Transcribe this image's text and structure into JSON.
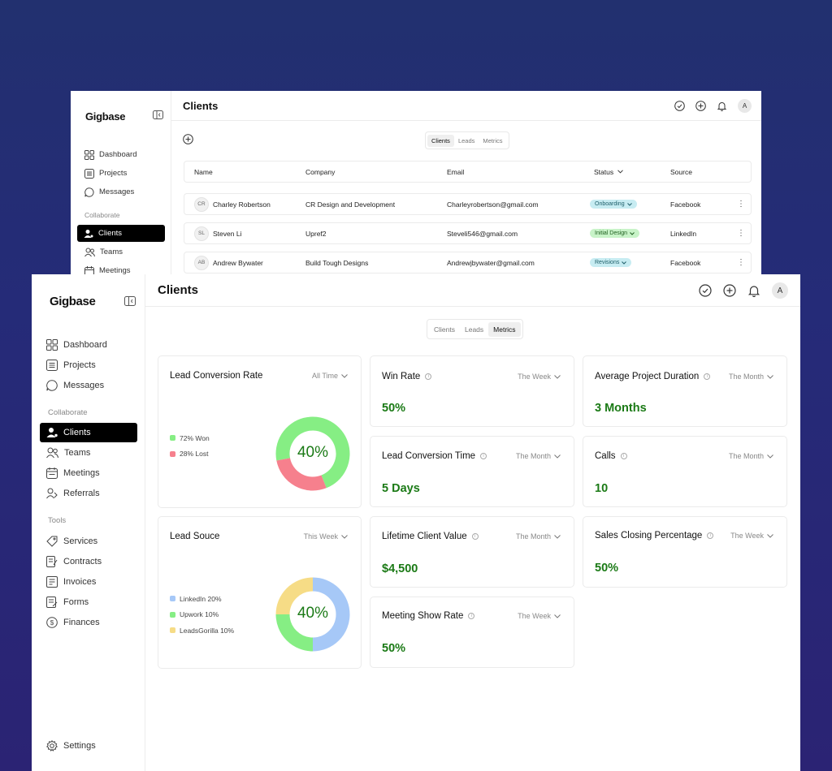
{
  "colors": {
    "green": "#1b7a16",
    "donut_green": "#86ee84",
    "donut_red": "#f6808d",
    "donut_blue": "#a6c8f7",
    "donut_yellow": "#f6dc86",
    "pill_cyan": "#c7ecf2",
    "pill_green": "#c8f3c8"
  },
  "back": {
    "logo": "Gigbase",
    "title": "Clients",
    "avatar": "A",
    "nav": [
      {
        "label": "Dashboard",
        "icon": "grid-icon"
      },
      {
        "label": "Projects",
        "icon": "list-icon"
      },
      {
        "label": "Messages",
        "icon": "chat-icon"
      }
    ],
    "section": "Collaborate",
    "nav2": [
      {
        "label": "Clients",
        "icon": "person-icon"
      },
      {
        "label": "Teams",
        "icon": "people-icon"
      },
      {
        "label": "Meetings",
        "icon": "calendar-icon"
      }
    ],
    "tabs": [
      "Clients",
      "Leads",
      "Metrics"
    ],
    "columns": [
      "Name",
      "Company",
      "Email",
      "Status",
      "Source"
    ],
    "rows": [
      {
        "initials": "CR",
        "name": "Charley Robertson",
        "company": "CR Design and Development",
        "email": "Charleyrobertson@gmail.com",
        "status": "Onboarding",
        "source": "Facebook"
      },
      {
        "initials": "SL",
        "name": "Steven Li",
        "company": "Upref2",
        "email": "Steveli546@gmail.com",
        "status": "Initial Design",
        "source": "LinkedIn"
      },
      {
        "initials": "AB",
        "name": "Andrew Bywater",
        "company": "Build Tough Designs",
        "email": "Andrewjbywater@gmail.com",
        "status": "Revisions",
        "source": "Facebook"
      }
    ]
  },
  "front": {
    "logo": "Gigbase",
    "title": "Clients",
    "avatar": "A",
    "nav": [
      {
        "label": "Dashboard",
        "icon": "grid-icon"
      },
      {
        "label": "Projects",
        "icon": "list-icon"
      },
      {
        "label": "Messages",
        "icon": "chat-icon"
      }
    ],
    "section1": "Collaborate",
    "nav2": [
      {
        "label": "Clients",
        "icon": "person-icon"
      },
      {
        "label": "Teams",
        "icon": "people-icon"
      },
      {
        "label": "Meetings",
        "icon": "calendar-icon"
      },
      {
        "label": "Referrals",
        "icon": "referral-icon"
      }
    ],
    "section2": "Tools",
    "nav3": [
      {
        "label": "Services",
        "icon": "tag-icon"
      },
      {
        "label": "Contracts",
        "icon": "contract-icon"
      },
      {
        "label": "Invoices",
        "icon": "invoice-icon"
      },
      {
        "label": "Forms",
        "icon": "form-icon"
      },
      {
        "label": "Finances",
        "icon": "dollar-icon"
      }
    ],
    "settings": "Settings",
    "tabs": [
      "Clients",
      "Leads",
      "Metrics"
    ],
    "lead_conversion": {
      "title": "Lead Conversion Rate",
      "period": "All Time",
      "center": "40%",
      "legend": [
        {
          "label": "72% Won",
          "value": 72,
          "color": "#86ee84"
        },
        {
          "label": "28% Lost",
          "value": 28,
          "color": "#f6808d"
        }
      ]
    },
    "lead_source": {
      "title": "Lead Souce",
      "period": "This Week",
      "center": "40%",
      "legend": [
        {
          "label": "LinkedIn 20%",
          "value": 50,
          "color": "#a6c8f7"
        },
        {
          "label": "Upwork 10%",
          "value": 25,
          "color": "#86ee84"
        },
        {
          "label": "LeadsGorilla 10%",
          "value": 25,
          "color": "#f6dc86"
        }
      ]
    },
    "metrics": [
      {
        "title": "Win Rate",
        "period": "The Week",
        "value": "50%"
      },
      {
        "title": "Average Project Duration",
        "period": "The Month",
        "value": "3 Months"
      },
      {
        "title": "Lead Conversion Time",
        "period": "The Month",
        "value": "5 Days"
      },
      {
        "title": "Calls",
        "period": "The Month",
        "value": "10"
      },
      {
        "title": "Lifetime Client Value",
        "period": "The Month",
        "value": "$4,500"
      },
      {
        "title": "Sales Closing Percentage",
        "period": "The Week",
        "value": "50%"
      },
      {
        "title": "Meeting Show Rate",
        "period": "The Week",
        "value": "50%"
      }
    ]
  }
}
